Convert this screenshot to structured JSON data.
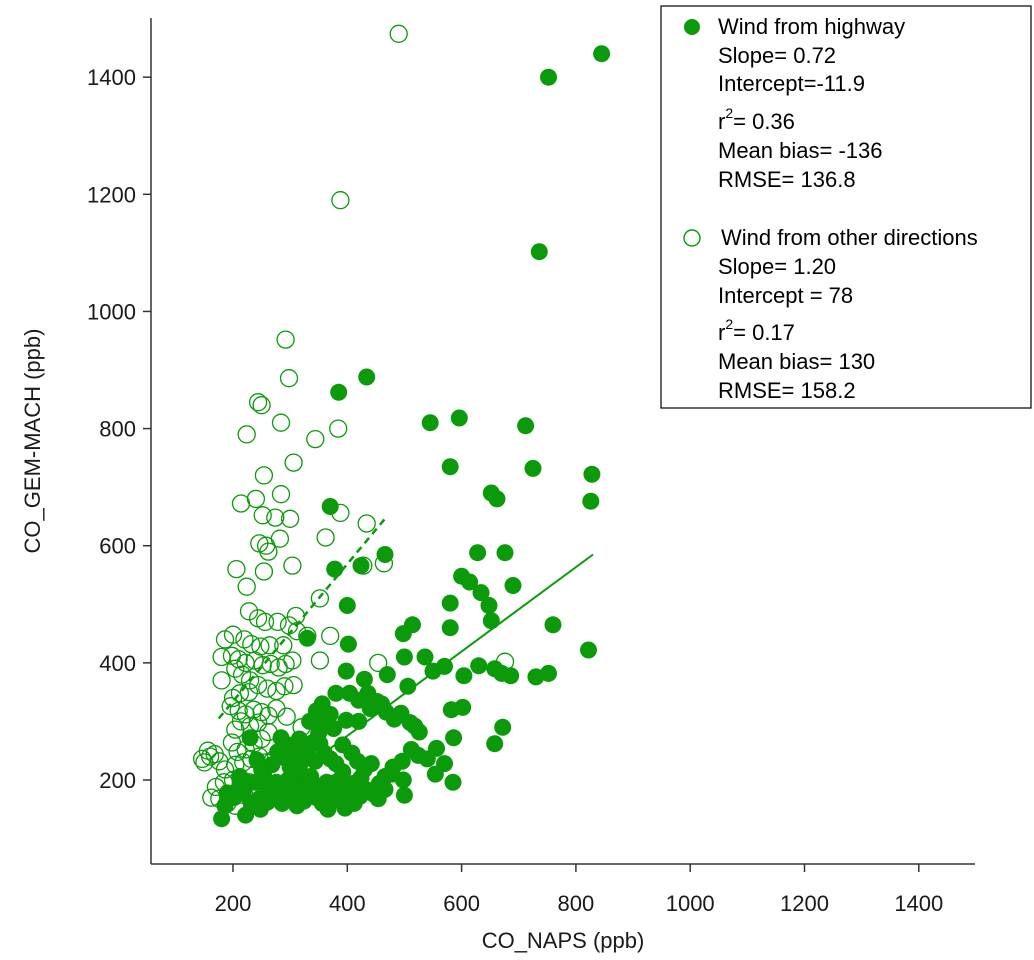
{
  "colors": {
    "series": "#0a9a0a",
    "axis": "#333333",
    "text": "#1a1a1a"
  },
  "chart_data": {
    "type": "scatter",
    "title": "",
    "xlabel": "CO_NAPS (ppb)",
    "ylabel": "CO_GEM-MACH (ppb)",
    "xlim": [
      120,
      1500
    ],
    "ylim": [
      90,
      1500
    ],
    "xticks": [
      200,
      400,
      600,
      800,
      1000,
      1200,
      1400
    ],
    "yticks": [
      200,
      400,
      600,
      800,
      1000,
      1200,
      1400
    ],
    "grid": false,
    "legend_position": "top-right",
    "series": [
      {
        "name": "Wind from highway",
        "marker": "filled-circle",
        "stats": [
          "Slope= 0.72",
          "Intercept=-11.9",
          "r",
          "2",
          "= 0.36",
          "Mean bias= -136",
          "RMSE= 136.8"
        ],
        "fit_line": {
          "style": "solid",
          "x": [
            330,
            830
          ],
          "y": [
            225,
            585
          ]
        },
        "points": [
          [
            845,
            1440
          ],
          [
            752,
            1400
          ],
          [
            736,
            1102
          ],
          [
            434,
            888
          ],
          [
            385,
            862
          ],
          [
            596,
            818
          ],
          [
            545,
            810
          ],
          [
            712,
            805
          ],
          [
            580,
            735
          ],
          [
            725,
            732
          ],
          [
            828,
            722
          ],
          [
            826,
            676
          ],
          [
            652,
            690
          ],
          [
            662,
            680
          ],
          [
            370,
            667
          ],
          [
            466,
            585
          ],
          [
            628,
            588
          ],
          [
            676,
            588
          ],
          [
            600,
            548
          ],
          [
            614,
            538
          ],
          [
            378,
            560
          ],
          [
            424,
            566
          ],
          [
            634,
            520
          ],
          [
            580,
            502
          ],
          [
            690,
            532
          ],
          [
            648,
            498
          ],
          [
            400,
            498
          ],
          [
            760,
            465
          ],
          [
            514,
            465
          ],
          [
            652,
            472
          ],
          [
            498,
            450
          ],
          [
            580,
            460
          ],
          [
            330,
            442
          ],
          [
            402,
            432
          ],
          [
            822,
            422
          ],
          [
            536,
            410
          ],
          [
            500,
            410
          ],
          [
            630,
            395
          ],
          [
            658,
            390
          ],
          [
            670,
            382
          ],
          [
            686,
            378
          ],
          [
            730,
            376
          ],
          [
            752,
            382
          ],
          [
            604,
            378
          ],
          [
            570,
            394
          ],
          [
            550,
            386
          ],
          [
            398,
            386
          ],
          [
            430,
            372
          ],
          [
            470,
            380
          ],
          [
            506,
            360
          ],
          [
            582,
            320
          ],
          [
            602,
            324
          ],
          [
            658,
            262
          ],
          [
            672,
            290
          ],
          [
            586,
            272
          ],
          [
            518,
            292
          ],
          [
            460,
            330
          ],
          [
            440,
            322
          ],
          [
            420,
            300
          ],
          [
            398,
            302
          ],
          [
            376,
            288
          ],
          [
            360,
            300
          ],
          [
            350,
            280
          ],
          [
            340,
            264
          ],
          [
            330,
            248
          ],
          [
            322,
            234
          ],
          [
            312,
            210
          ],
          [
            300,
            222
          ],
          [
            290,
            238
          ],
          [
            278,
            248
          ],
          [
            268,
            226
          ],
          [
            250,
            218
          ],
          [
            240,
            196
          ],
          [
            224,
            196
          ],
          [
            212,
            190
          ],
          [
            206,
            180
          ],
          [
            190,
            178
          ],
          [
            186,
            156
          ],
          [
            180,
            134
          ],
          [
            222,
            140
          ],
          [
            248,
            150
          ],
          [
            260,
            162
          ],
          [
            270,
            176
          ],
          [
            286,
            160
          ],
          [
            300,
            172
          ],
          [
            312,
            156
          ],
          [
            324,
            164
          ],
          [
            334,
            176
          ],
          [
            346,
            170
          ],
          [
            356,
            160
          ],
          [
            366,
            150
          ],
          [
            376,
            166
          ],
          [
            386,
            172
          ],
          [
            396,
            152
          ],
          [
            404,
            164
          ],
          [
            414,
            178
          ],
          [
            422,
            172
          ],
          [
            432,
            184
          ],
          [
            446,
            176
          ],
          [
            456,
            194
          ],
          [
            466,
            206
          ],
          [
            480,
            222
          ],
          [
            496,
            232
          ],
          [
            512,
            252
          ],
          [
            524,
            242
          ],
          [
            540,
            236
          ],
          [
            556,
            254
          ],
          [
            570,
            228
          ],
          [
            585,
            196
          ],
          [
            554,
            210
          ],
          [
            500,
            174
          ],
          [
            498,
            200
          ],
          [
            478,
            210
          ],
          [
            466,
            184
          ],
          [
            454,
            168
          ],
          [
            438,
            182
          ],
          [
            424,
            204
          ],
          [
            410,
            194
          ],
          [
            392,
            214
          ],
          [
            380,
            228
          ],
          [
            370,
            236
          ],
          [
            360,
            246
          ],
          [
            352,
            262
          ],
          [
            344,
            232
          ],
          [
            336,
            206
          ],
          [
            328,
            186
          ],
          [
            318,
            178
          ],
          [
            308,
            192
          ],
          [
            296,
            200
          ],
          [
            284,
            184
          ],
          [
            276,
            196
          ],
          [
            266,
            184
          ],
          [
            258,
            174
          ],
          [
            246,
            168
          ],
          [
            232,
            160
          ],
          [
            218,
            178
          ],
          [
            202,
            170
          ],
          [
            370,
            312
          ],
          [
            356,
            330
          ],
          [
            346,
            318
          ],
          [
            334,
            300
          ],
          [
            316,
            270
          ],
          [
            308,
            256
          ],
          [
            294,
            244
          ],
          [
            380,
            348
          ],
          [
            404,
            348
          ],
          [
            420,
            336
          ],
          [
            436,
            348
          ],
          [
            452,
            334
          ],
          [
            468,
            316
          ],
          [
            482,
            304
          ],
          [
            494,
            314
          ],
          [
            510,
            298
          ],
          [
            526,
            282
          ],
          [
            392,
            260
          ],
          [
            408,
            246
          ],
          [
            418,
            232
          ],
          [
            430,
            218
          ],
          [
            442,
            228
          ],
          [
            380,
            196
          ],
          [
            390,
            178
          ],
          [
            400,
            188
          ],
          [
            412,
            160
          ],
          [
            370,
            176
          ],
          [
            364,
            196
          ],
          [
            352,
            186
          ],
          [
            342,
            192
          ],
          [
            326,
            196
          ],
          [
            316,
            220
          ],
          [
            306,
            230
          ],
          [
            296,
            260
          ],
          [
            284,
            272
          ],
          [
            230,
            272
          ],
          [
            242,
            234
          ],
          [
            254,
            206
          ],
          [
            212,
            206
          ]
        ]
      },
      {
        "name": "Wind from other directions",
        "marker": "open-circle",
        "stats": [
          "Slope= 1.20",
          "Intercept = 78",
          "r",
          "2",
          "= 0.17",
          "Mean bias= 130",
          "RMSE= 158.2"
        ],
        "fit_line": {
          "style": "dashed",
          "x": [
            175,
            465
          ],
          "y": [
            305,
            645
          ]
        },
        "points": [
          [
            490,
            1474
          ],
          [
            388,
            1190
          ],
          [
            292,
            952
          ],
          [
            298,
            886
          ],
          [
            244,
            845
          ],
          [
            250,
            840
          ],
          [
            384,
            800
          ],
          [
            284,
            810
          ],
          [
            224,
            790
          ],
          [
            344,
            782
          ],
          [
            306,
            742
          ],
          [
            254,
            720
          ],
          [
            240,
            680
          ],
          [
            284,
            688
          ],
          [
            214,
            672
          ],
          [
            300,
            646
          ],
          [
            388,
            656
          ],
          [
            434,
            638
          ],
          [
            252,
            652
          ],
          [
            274,
            648
          ],
          [
            246,
            604
          ],
          [
            258,
            600
          ],
          [
            262,
            590
          ],
          [
            282,
            612
          ],
          [
            362,
            614
          ],
          [
            224,
            530
          ],
          [
            206,
            560
          ],
          [
            254,
            556
          ],
          [
            304,
            566
          ],
          [
            464,
            570
          ],
          [
            428,
            566
          ],
          [
            352,
            510
          ],
          [
            310,
            480
          ],
          [
            228,
            488
          ],
          [
            244,
            476
          ],
          [
            256,
            470
          ],
          [
            278,
            470
          ],
          [
            298,
            464
          ],
          [
            312,
            454
          ],
          [
            330,
            446
          ],
          [
            370,
            446
          ],
          [
            186,
            440
          ],
          [
            200,
            448
          ],
          [
            220,
            440
          ],
          [
            232,
            432
          ],
          [
            248,
            428
          ],
          [
            264,
            430
          ],
          [
            288,
            430
          ],
          [
            198,
            412
          ],
          [
            210,
            406
          ],
          [
            222,
            400
          ],
          [
            238,
            404
          ],
          [
            252,
            396
          ],
          [
            266,
            398
          ],
          [
            280,
            392
          ],
          [
            292,
            398
          ],
          [
            304,
            404
          ],
          [
            352,
            404
          ],
          [
            454,
            400
          ],
          [
            676,
            402
          ],
          [
            180,
            410
          ],
          [
            204,
            390
          ],
          [
            216,
            380
          ],
          [
            230,
            370
          ],
          [
            244,
            362
          ],
          [
            260,
            356
          ],
          [
            276,
            352
          ],
          [
            290,
            360
          ],
          [
            306,
            362
          ],
          [
            228,
            350
          ],
          [
            212,
            348
          ],
          [
            200,
            340
          ],
          [
            180,
            370
          ],
          [
            196,
            326
          ],
          [
            210,
            318
          ],
          [
            222,
            312
          ],
          [
            236,
            320
          ],
          [
            250,
            316
          ],
          [
            262,
            310
          ],
          [
            276,
            322
          ],
          [
            294,
            308
          ],
          [
            320,
            290
          ],
          [
            244,
            298
          ],
          [
            230,
            292
          ],
          [
            214,
            300
          ],
          [
            204,
            286
          ],
          [
            198,
            264
          ],
          [
            208,
            248
          ],
          [
            222,
            252
          ],
          [
            236,
            262
          ],
          [
            250,
            270
          ],
          [
            262,
            282
          ],
          [
            204,
            226
          ],
          [
            218,
            230
          ],
          [
            232,
            236
          ],
          [
            246,
            240
          ],
          [
            258,
            230
          ],
          [
            270,
            234
          ],
          [
            160,
            240
          ],
          [
            150,
            230
          ],
          [
            146,
            236
          ],
          [
            156,
            250
          ],
          [
            168,
            244
          ],
          [
            176,
            232
          ],
          [
            186,
            218
          ],
          [
            200,
            200
          ],
          [
            214,
            192
          ],
          [
            228,
            196
          ],
          [
            184,
            196
          ],
          [
            170,
            188
          ],
          [
            162,
            170
          ],
          [
            176,
            168
          ],
          [
            190,
            160
          ],
          [
            204,
            156
          ],
          [
            220,
            174
          ],
          [
            236,
            180
          ],
          [
            250,
            164
          ]
        ]
      }
    ]
  }
}
